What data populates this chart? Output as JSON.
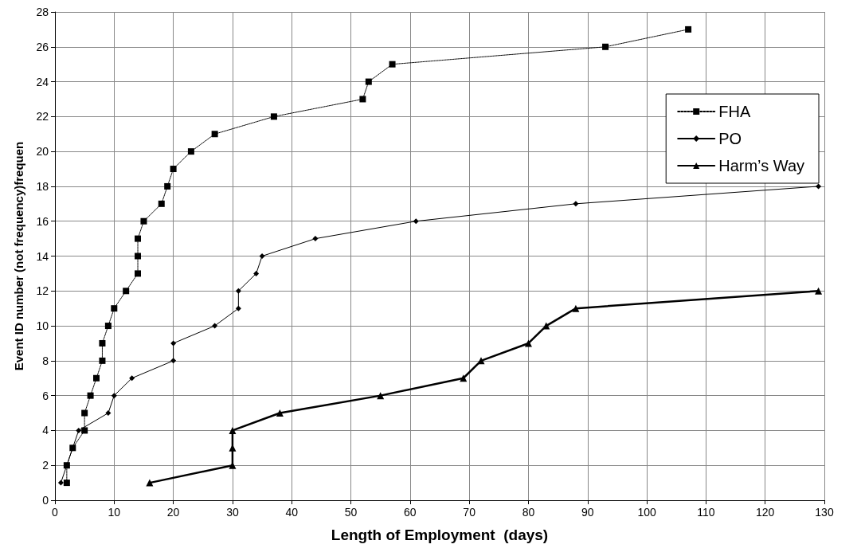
{
  "chart_data": {
    "type": "line",
    "xlabel": "Length of Employment  (days)",
    "ylabel": "Event ID number (not frequency)frequen",
    "xlim": [
      0,
      130
    ],
    "xticks": [
      0,
      10,
      20,
      30,
      40,
      50,
      60,
      70,
      80,
      90,
      100,
      110,
      120,
      130
    ],
    "ylim": [
      0,
      28
    ],
    "yticks": [
      0,
      2,
      4,
      6,
      8,
      10,
      12,
      14,
      16,
      18,
      20,
      22,
      24,
      26,
      28
    ],
    "grid": true,
    "legend": "top right",
    "series": [
      {
        "name": "FHA",
        "color": "#000000",
        "marker": "square",
        "line_style": "dotted",
        "x": [
          2,
          2,
          3,
          5,
          5,
          6,
          7,
          8,
          8,
          9,
          10,
          12,
          14,
          14,
          14,
          15,
          18,
          19,
          20,
          23,
          27,
          37,
          52,
          53,
          57,
          93,
          107
        ],
        "values": [
          1,
          2,
          3,
          4,
          5,
          6,
          7,
          8,
          9,
          10,
          11,
          12,
          13,
          14,
          15,
          16,
          17,
          18,
          19,
          20,
          21,
          22,
          23,
          24,
          25,
          26,
          27
        ]
      },
      {
        "name": "PO",
        "color": "#000000",
        "marker": "diamond",
        "line_style": "solid",
        "x": [
          1,
          2,
          3,
          4,
          9,
          10,
          13,
          20,
          20,
          27,
          31,
          31,
          34,
          35,
          44,
          61,
          88,
          129
        ],
        "values": [
          1,
          2,
          3,
          4,
          5,
          6,
          7,
          8,
          9,
          10,
          11,
          12,
          13,
          14,
          15,
          16,
          17,
          18
        ]
      },
      {
        "name": "Harm’s Way",
        "color": "#000000",
        "marker": "triangle",
        "line_style": "solid",
        "x": [
          16,
          30,
          30,
          30,
          38,
          55,
          69,
          72,
          80,
          83,
          88,
          129
        ],
        "values": [
          1,
          2,
          3,
          4,
          5,
          6,
          7,
          8,
          9,
          10,
          11,
          12
        ]
      }
    ]
  }
}
